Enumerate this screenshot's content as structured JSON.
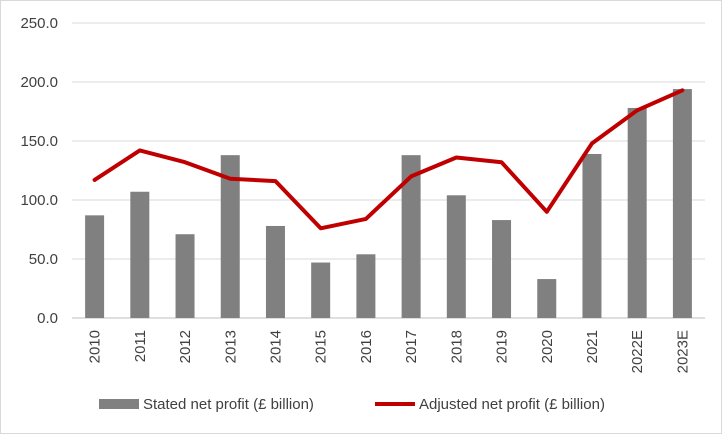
{
  "chart_data": {
    "type": "bar",
    "title": "",
    "xlabel": "",
    "ylabel": "",
    "ylim": [
      0,
      250
    ],
    "yticks": [
      "0.0",
      "50.0",
      "100.0",
      "150.0",
      "200.0",
      "250.0"
    ],
    "grid": true,
    "legend_position": "bottom",
    "categories": [
      "2010",
      "2011",
      "2012",
      "2013",
      "2014",
      "2015",
      "2016",
      "2017",
      "2018",
      "2019",
      "2020",
      "2021",
      "2022E",
      "2023E"
    ],
    "series": [
      {
        "name": "Stated net profit (£ billion)",
        "type": "bar",
        "color": "#808080",
        "values": [
          87,
          107,
          71,
          138,
          78,
          47,
          54,
          138,
          104,
          83,
          33,
          139,
          178,
          194
        ]
      },
      {
        "name": "Adjusted net profit (£ billion)",
        "type": "line",
        "color": "#c00000",
        "values": [
          117,
          142,
          132,
          118,
          116,
          76,
          84,
          120,
          136,
          132,
          90,
          148,
          176,
          193
        ]
      }
    ]
  }
}
